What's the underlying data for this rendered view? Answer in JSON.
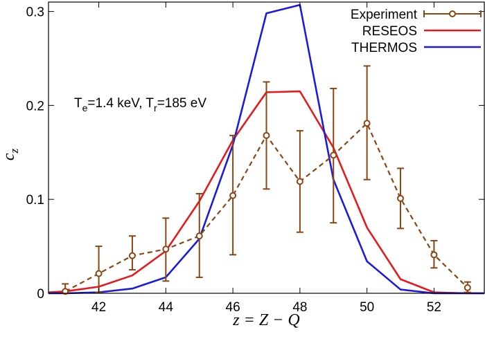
{
  "chart_data": {
    "type": "line",
    "xlabel": "z = Z − Q",
    "ylabel": "c_z",
    "xlim": [
      40.5,
      53.5
    ],
    "ylim": [
      0,
      0.31
    ],
    "x_ticks": [
      42,
      44,
      46,
      48,
      50,
      52
    ],
    "y_ticks": [
      0,
      0.1,
      0.2,
      0.3
    ],
    "y_tick_labels": [
      "0",
      "0.1",
      "0.2",
      "0.3"
    ],
    "grid": false,
    "legend_position": "top-right",
    "annotation": {
      "parts": [
        {
          "text": "T",
          "sub": false
        },
        {
          "text": "e",
          "sub": true
        },
        {
          "text": "=1.4 keV, T",
          "sub": false
        },
        {
          "text": "r",
          "sub": true
        },
        {
          "text": "=185 eV",
          "sub": false
        }
      ]
    },
    "series": [
      {
        "name": "Experiment",
        "color": "#8B4513",
        "style": "dashed-with-errorbars",
        "x": [
          41,
          42,
          43,
          44,
          45,
          46,
          47,
          48,
          49,
          50,
          51,
          52,
          53
        ],
        "y": [
          0.002,
          0.021,
          0.04,
          0.047,
          0.061,
          0.104,
          0.168,
          0.119,
          0.147,
          0.181,
          0.101,
          0.041,
          0.006
        ],
        "err_low": [
          0.0,
          0.001,
          0.025,
          0.013,
          0.017,
          0.041,
          0.111,
          0.065,
          0.075,
          0.121,
          0.069,
          0.027,
          0.001
        ],
        "err_high": [
          0.01,
          0.05,
          0.061,
          0.08,
          0.106,
          0.168,
          0.225,
          0.173,
          0.218,
          0.242,
          0.133,
          0.056,
          0.012
        ]
      },
      {
        "name": "RESEOS",
        "color": "#e8191b",
        "style": "solid",
        "x": [
          40.5,
          41,
          42,
          43,
          44,
          45,
          46,
          47,
          48,
          49,
          50,
          51,
          52,
          53,
          53.5
        ],
        "y": [
          0.001,
          0.002,
          0.007,
          0.019,
          0.045,
          0.098,
          0.163,
          0.214,
          0.215,
          0.155,
          0.07,
          0.015,
          0.001,
          0.0,
          0.0
        ]
      },
      {
        "name": "THERMOS",
        "color": "#1a1ae0",
        "style": "solid",
        "x": [
          40.5,
          41,
          42,
          43,
          44,
          45,
          46,
          47,
          48,
          49,
          50,
          51,
          52,
          53,
          53.5
        ],
        "y": [
          0.0,
          0.0,
          0.001,
          0.005,
          0.017,
          0.058,
          0.158,
          0.298,
          0.307,
          0.121,
          0.034,
          0.004,
          0.0,
          0.0,
          0.0
        ]
      }
    ]
  }
}
